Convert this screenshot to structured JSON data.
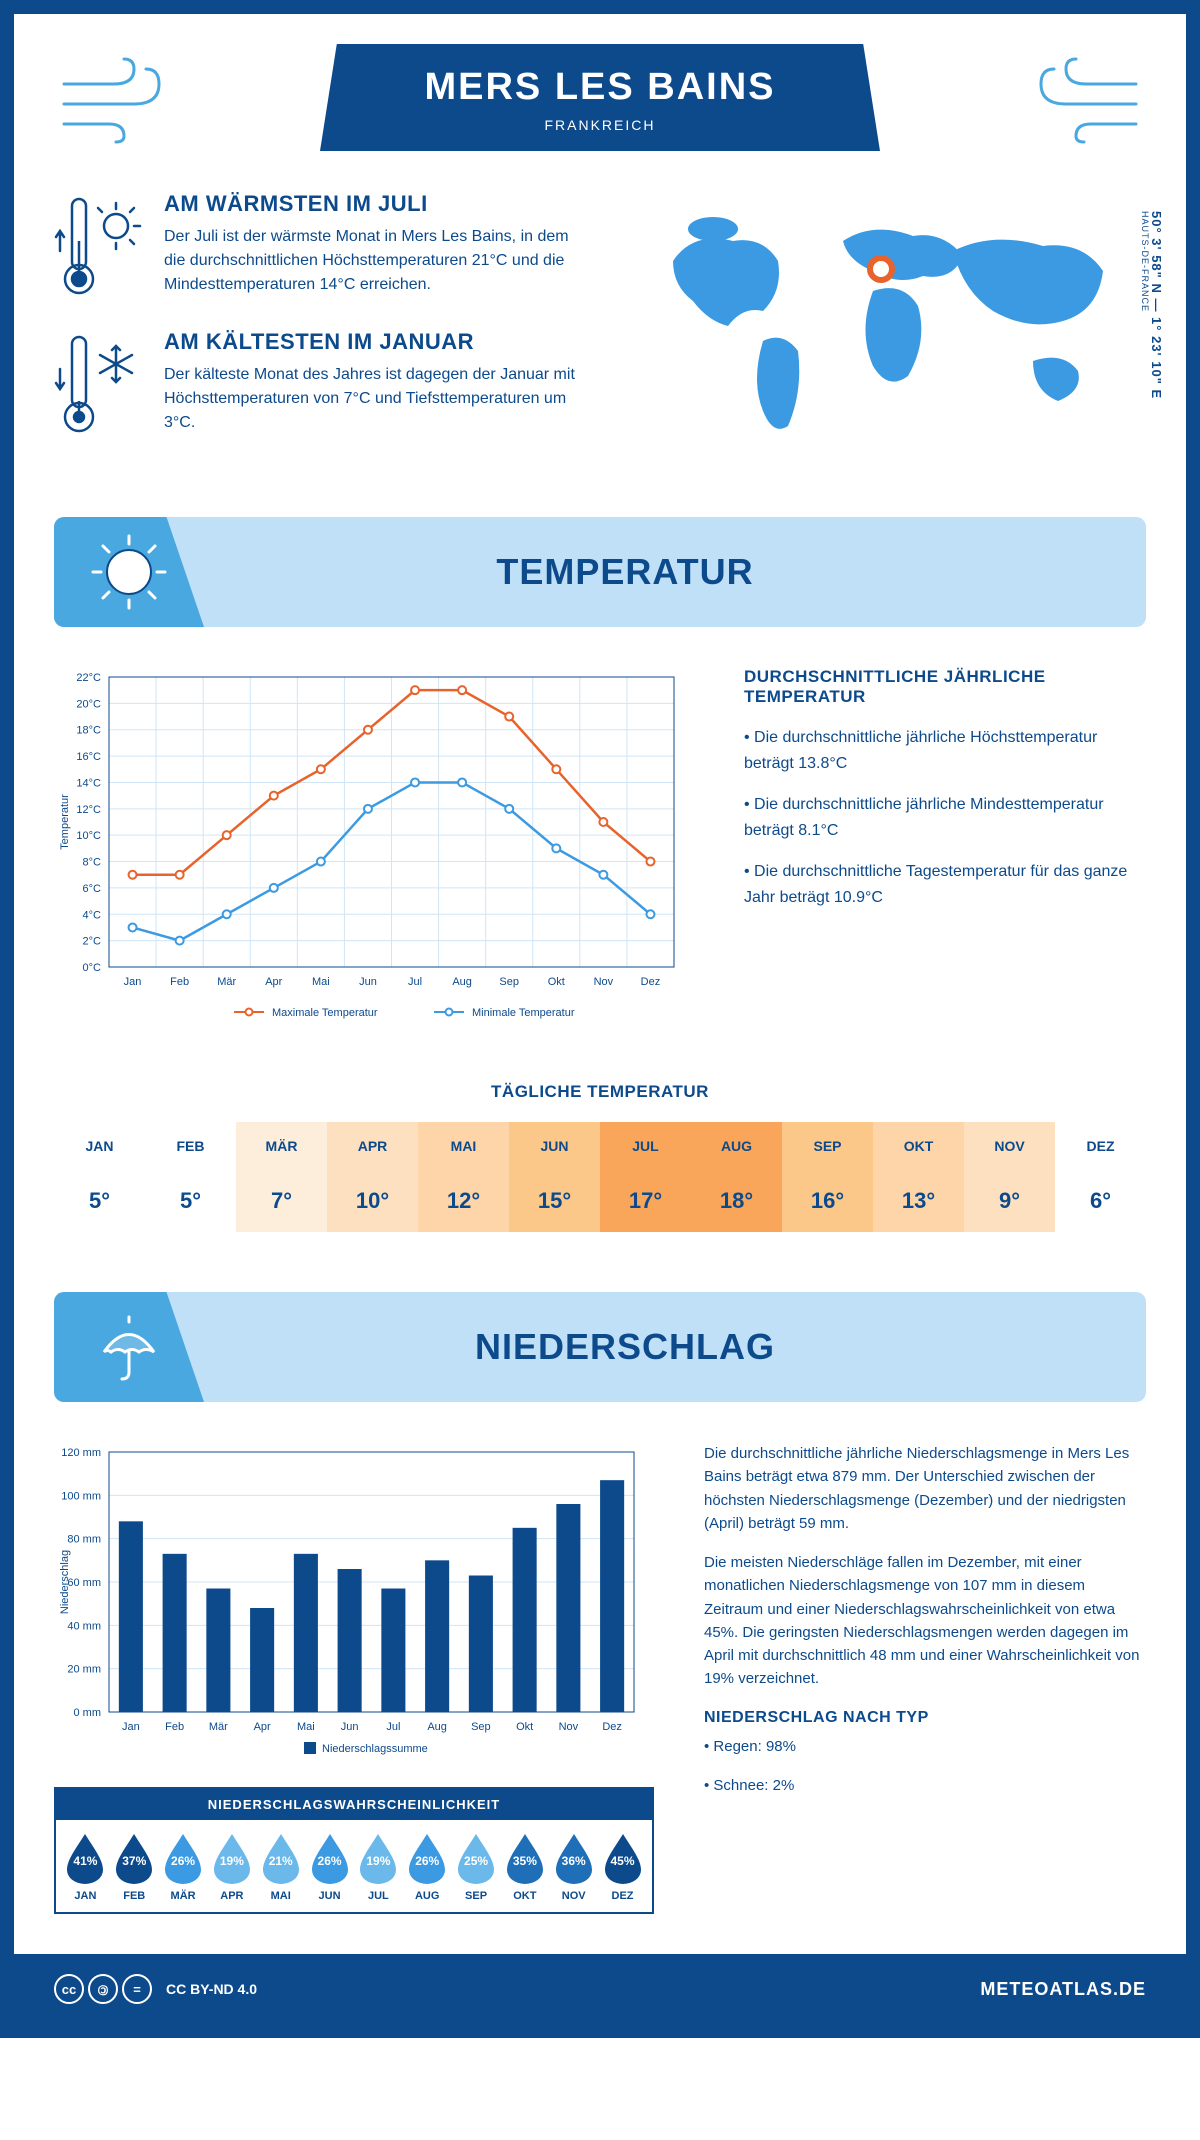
{
  "header": {
    "city": "MERS LES BAINS",
    "country": "FRANKREICH"
  },
  "coords": "50° 3' 58\" N — 1° 23' 10\" E",
  "region": "HAUTS-DE-FRANCE",
  "warm": {
    "title": "AM WÄRMSTEN IM JULI",
    "text": "Der Juli ist der wärmste Monat in Mers Les Bains, in dem die durchschnittlichen Höchsttemperaturen 21°C und die Mindesttemperaturen 14°C erreichen."
  },
  "cold": {
    "title": "AM KÄLTESTEN IM JANUAR",
    "text": "Der kälteste Monat des Jahres ist dagegen der Januar mit Höchsttemperaturen von 7°C und Tiefsttemperaturen um 3°C."
  },
  "section_temp": "TEMPERATUR",
  "section_precip": "NIEDERSCHLAG",
  "temp_chart": {
    "months": [
      "Jan",
      "Feb",
      "Mär",
      "Apr",
      "Mai",
      "Jun",
      "Jul",
      "Aug",
      "Sep",
      "Okt",
      "Nov",
      "Dez"
    ],
    "max": [
      7,
      7,
      10,
      13,
      15,
      18,
      21,
      21,
      19,
      15,
      11,
      8
    ],
    "min": [
      3,
      2,
      4,
      6,
      8,
      12,
      14,
      14,
      12,
      9,
      7,
      4
    ],
    "ylim": [
      0,
      22
    ],
    "ytick": 2,
    "max_color": "#e8632c",
    "min_color": "#3b9ae1",
    "grid_color": "#d0e5f5",
    "ylabel": "Temperatur",
    "legend_max": "Maximale Temperatur",
    "legend_min": "Minimale Temperatur"
  },
  "temp_info": {
    "title": "DURCHSCHNITTLICHE JÄHRLICHE TEMPERATUR",
    "b1": "• Die durchschnittliche jährliche Höchsttemperatur beträgt 13.8°C",
    "b2": "• Die durchschnittliche jährliche Mindesttemperatur beträgt 8.1°C",
    "b3": "• Die durchschnittliche Tagestemperatur für das ganze Jahr beträgt 10.9°C"
  },
  "daily": {
    "title": "TÄGLICHE TEMPERATUR",
    "months": [
      "JAN",
      "FEB",
      "MÄR",
      "APR",
      "MAI",
      "JUN",
      "JUL",
      "AUG",
      "SEP",
      "OKT",
      "NOV",
      "DEZ"
    ],
    "values": [
      "5°",
      "5°",
      "7°",
      "10°",
      "12°",
      "15°",
      "17°",
      "18°",
      "16°",
      "13°",
      "9°",
      "6°"
    ],
    "colors": [
      "#ffffff",
      "#ffffff",
      "#fdeedc",
      "#fde0c0",
      "#fdd5a8",
      "#fbc88a",
      "#f9a65a",
      "#f9a65a",
      "#fbc88a",
      "#fdd5a8",
      "#fde0c0",
      "#ffffff"
    ]
  },
  "precip_chart": {
    "months": [
      "Jan",
      "Feb",
      "Mär",
      "Apr",
      "Mai",
      "Jun",
      "Jul",
      "Aug",
      "Sep",
      "Okt",
      "Nov",
      "Dez"
    ],
    "values": [
      88,
      73,
      57,
      48,
      73,
      66,
      57,
      70,
      63,
      85,
      96,
      107
    ],
    "ylim": [
      0,
      120
    ],
    "ytick": 20,
    "bar_color": "#0c4a8c",
    "ylabel": "Niederschlag",
    "legend": "Niederschlagssumme"
  },
  "precip_info": {
    "p1": "Die durchschnittliche jährliche Niederschlagsmenge in Mers Les Bains beträgt etwa 879 mm. Der Unterschied zwischen der höchsten Niederschlagsmenge (Dezember) und der niedrigsten (April) beträgt 59 mm.",
    "p2": "Die meisten Niederschläge fallen im Dezember, mit einer monatlichen Niederschlagsmenge von 107 mm in diesem Zeitraum und einer Niederschlagswahrscheinlichkeit von etwa 45%. Die geringsten Niederschlagsmengen werden dagegen im April mit durchschnittlich 48 mm und einer Wahrscheinlichkeit von 19% verzeichnet.",
    "type_title": "NIEDERSCHLAG NACH TYP",
    "t1": "• Regen: 98%",
    "t2": "• Schnee: 2%"
  },
  "prob": {
    "title": "NIEDERSCHLAGSWAHRSCHEINLICHKEIT",
    "months": [
      "JAN",
      "FEB",
      "MÄR",
      "APR",
      "MAI",
      "JUN",
      "JUL",
      "AUG",
      "SEP",
      "OKT",
      "NOV",
      "DEZ"
    ],
    "values": [
      "41%",
      "37%",
      "26%",
      "19%",
      "21%",
      "26%",
      "19%",
      "26%",
      "25%",
      "35%",
      "36%",
      "45%"
    ],
    "colors": [
      "#0c4a8c",
      "#0c4a8c",
      "#3b9ae1",
      "#6bb8eb",
      "#6bb8eb",
      "#3b9ae1",
      "#6bb8eb",
      "#3b9ae1",
      "#6bb8eb",
      "#1e6fb8",
      "#1e6fb8",
      "#0c4a8c"
    ]
  },
  "footer": {
    "license": "CC BY-ND 4.0",
    "site": "METEOATLAS.DE"
  }
}
